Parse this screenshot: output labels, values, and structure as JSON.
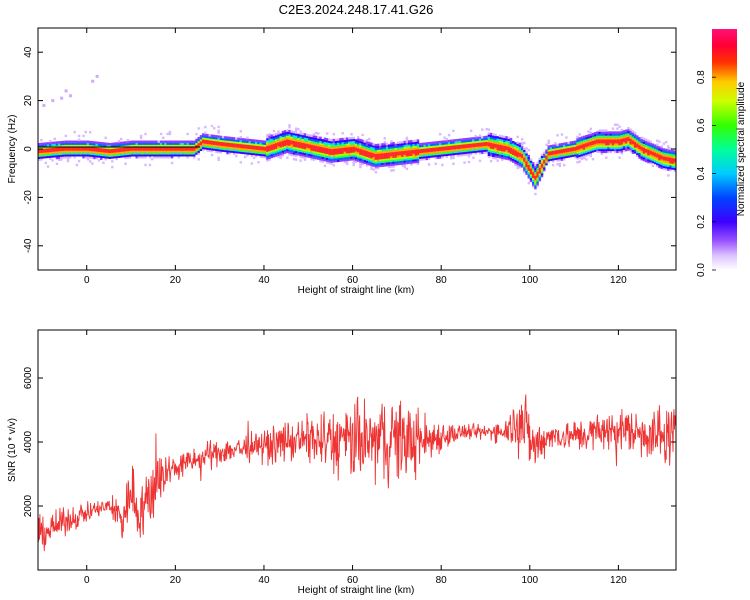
{
  "title": "C2E3.2024.248.17.41.G26",
  "chart_data": [
    {
      "type": "heatmap",
      "xlabel": "Height of straight line (km)",
      "ylabel": "Frequency (Hz)",
      "xlim": [
        -11,
        133
      ],
      "ylim": [
        -50,
        50
      ],
      "xticks": [
        0,
        20,
        40,
        60,
        80,
        100,
        120
      ],
      "yticks": [
        -40,
        -20,
        0,
        20,
        40
      ],
      "colorbar": {
        "label": "Normalized spectral amplitude",
        "range": [
          0,
          1
        ],
        "ticks": [
          "0.0",
          "0.2",
          "0.4",
          "0.6",
          "0.8"
        ]
      },
      "ridge": {
        "x": [
          -11,
          -5,
          0,
          5,
          10,
          15,
          20,
          24,
          26,
          30,
          35,
          40,
          45,
          50,
          55,
          60,
          65,
          70,
          75,
          80,
          85,
          90,
          95,
          98,
          101,
          104,
          110,
          115,
          120,
          122,
          125,
          130,
          133
        ],
        "y": [
          -1,
          0,
          0,
          -1,
          0,
          0,
          0,
          0,
          3,
          2,
          1,
          0,
          3,
          1,
          -1,
          0,
          -3,
          -2,
          -1,
          0,
          1,
          2,
          0,
          -3,
          -12,
          -2,
          0,
          3,
          3,
          4,
          0,
          -4,
          -5
        ]
      },
      "grid": false
    },
    {
      "type": "line",
      "xlabel": "Height of straight line (km)",
      "ylabel": "SNR (10 * v/v)",
      "xlim": [
        -11,
        133
      ],
      "ylim": [
        0,
        7500
      ],
      "xticks": [
        0,
        20,
        40,
        60,
        80,
        100,
        120
      ],
      "yticks": [
        2000,
        4000,
        6000
      ],
      "series": [
        {
          "color": "#ee3333",
          "envelope": {
            "x": [
              -11,
              -5,
              0,
              5,
              8,
              10,
              12,
              15,
              17,
              20,
              30,
              40,
              50,
              55,
              60,
              65,
              70,
              75,
              80,
              85,
              90,
              95,
              98,
              101,
              104,
              110,
              120,
              130,
              133
            ],
            "center": [
              1100,
              1500,
              1800,
              2000,
              1600,
              2500,
              1800,
              2500,
              3000,
              3200,
              3700,
              3900,
              4100,
              4000,
              4000,
              4000,
              4100,
              4000,
              4200,
              4300,
              4300,
              4400,
              4800,
              3800,
              4200,
              4200,
              4400,
              4200,
              4200
            ],
            "spread": [
              700,
              500,
              400,
              300,
              1000,
              1100,
              1200,
              1300,
              1000,
              500,
              500,
              600,
              900,
              1300,
              1500,
              1500,
              1700,
              1200,
              600,
              300,
              300,
              500,
              1300,
              1100,
              500,
              600,
              800,
              1100,
              1100
            ]
          }
        }
      ],
      "grid": false
    }
  ]
}
